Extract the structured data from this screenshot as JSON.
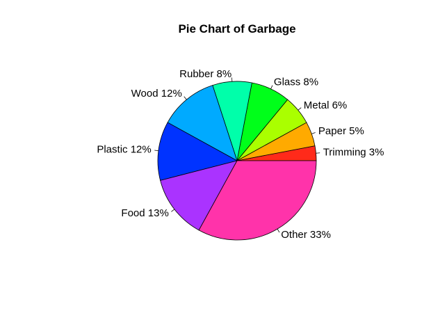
{
  "chart_data": {
    "type": "pie",
    "title": "Pie Chart of Garbage",
    "start_angle_deg": 0,
    "direction": "counterclockwise",
    "slices": [
      {
        "label": "Trimming 3%",
        "value": 3,
        "color": "#ff2a1a"
      },
      {
        "label": "Paper 5%",
        "value": 5,
        "color": "#ffaa00"
      },
      {
        "label": "Metal 6%",
        "value": 6,
        "color": "#aaff00"
      },
      {
        "label": "Glass 8%",
        "value": 8,
        "color": "#00ff1a"
      },
      {
        "label": "Rubber 8%",
        "value": 8,
        "color": "#00ffaa"
      },
      {
        "label": "Wood 12%",
        "value": 12,
        "color": "#00aaff"
      },
      {
        "label": "Plastic 12%",
        "value": 12,
        "color": "#0033ff"
      },
      {
        "label": "Food 13%",
        "value": 13,
        "color": "#aa33ff"
      },
      {
        "label": "Other 33%",
        "value": 33,
        "color": "#ff33aa"
      }
    ]
  }
}
